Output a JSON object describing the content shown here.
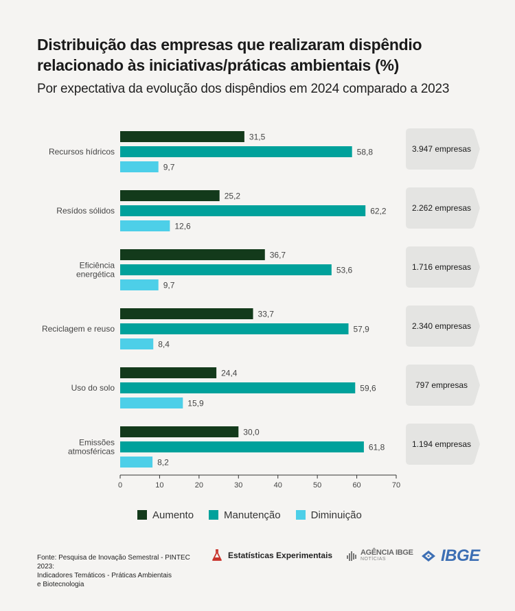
{
  "header": {
    "title_line1": "Distribuição das empresas que realizaram dispêndio",
    "title_line2": "relacionado às iniciativas/práticas ambientais (%)",
    "subtitle": "Por expectativa da evolução dos dispêndios em 2024 comparado a 2023"
  },
  "chart_data": {
    "type": "bar",
    "orientation": "horizontal",
    "title": "Distribuição das empresas que realizaram dispêndio relacionado às iniciativas/práticas ambientais (%)",
    "subtitle": "Por expectativa da evolução dos dispêndios em 2024 comparado a 2023",
    "categories": [
      [
        "Recursos hídricos"
      ],
      [
        "Resídos sólidos"
      ],
      [
        "Eficiência",
        "energética"
      ],
      [
        "Reciclagem e reuso"
      ],
      [
        "Uso do solo"
      ],
      [
        "Emissões",
        "atmosféricas"
      ]
    ],
    "series": [
      {
        "name": "Aumento",
        "color": "#133a1b",
        "values": [
          31.5,
          25.2,
          36.7,
          33.7,
          24.4,
          30.0
        ],
        "labels": [
          "31,5",
          "25,2",
          "36,7",
          "33,7",
          "24,4",
          "30,0"
        ]
      },
      {
        "name": "Manutenção",
        "color": "#00a19b",
        "values": [
          58.8,
          62.2,
          53.6,
          57.9,
          59.6,
          61.8
        ],
        "labels": [
          "58,8",
          "62,2",
          "53,6",
          "57,9",
          "59,6",
          "61,8"
        ]
      },
      {
        "name": "Diminuição",
        "color": "#4dcfe8",
        "values": [
          9.7,
          12.6,
          9.7,
          8.4,
          15.9,
          8.2
        ],
        "labels": [
          "9,7",
          "12,6",
          "9,7",
          "8,4",
          "15,9",
          "8,2"
        ]
      }
    ],
    "company_counts": [
      "3.947 empresas",
      "2.262 empresas",
      "1.716 empresas",
      "2.340 empresas",
      "797 empresas",
      "1.194 empresas"
    ],
    "xlim": [
      0,
      70
    ],
    "xticks": [
      0,
      10,
      20,
      30,
      40,
      50,
      60,
      70
    ],
    "grid": false,
    "legend_position": "bottom"
  },
  "legend": {
    "aumento": "Aumento",
    "manutencao": "Manutenção",
    "diminuicao": "Diminuição"
  },
  "footer": {
    "source_line1": "Fonte: Pesquisa de Inovação Semestral - PINTEC 2023:",
    "source_line2": "Indicadores Temáticos - Práticas Ambientais",
    "source_line3": "e Biotecnologia",
    "logo_estatisticas": "Estatísticas Experimentais",
    "logo_agencia": "AGÊNCIA IBGE",
    "logo_agencia_sub": "NOTÍCIAS",
    "logo_ibge": "IBGE"
  },
  "colors": {
    "aumento": "#133a1b",
    "manutencao": "#00a19b",
    "diminuicao": "#4dcfe8",
    "label_box": "#e4e4e2",
    "ibge_blue": "#3d6fb4",
    "estat_red": "#c8332b"
  }
}
